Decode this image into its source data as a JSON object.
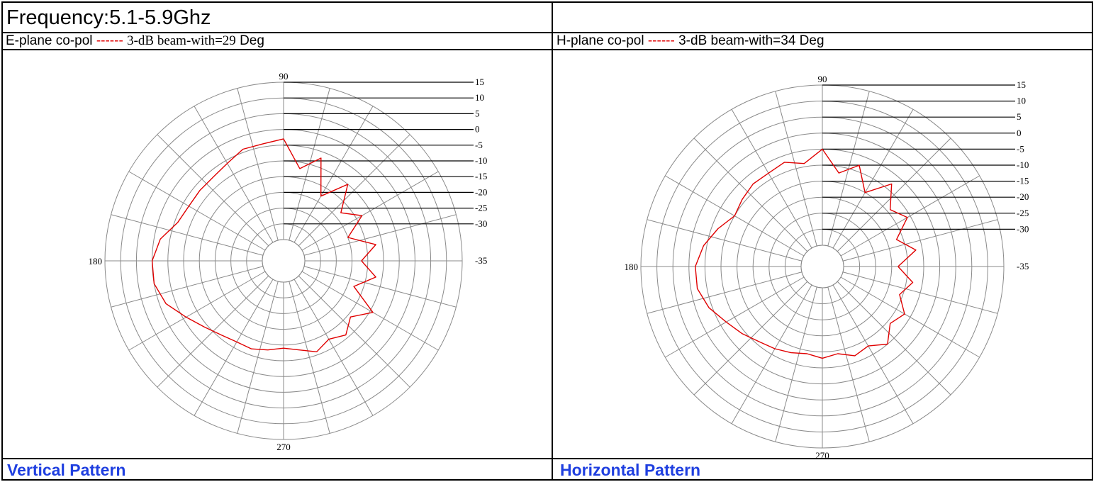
{
  "header": {
    "frequency": "Frequency:5.1-5.9Ghz"
  },
  "colors": {
    "trace": "#e00000",
    "grid": "#8a8a8a",
    "caption": "#1f3fe0"
  },
  "left": {
    "subtitle_prefix": "E-plane co-pol",
    "dash": "------",
    "beam_text": "3-dB beam-with=29",
    "unit": "Deg",
    "caption": "Vertical Pattern"
  },
  "right": {
    "subtitle_prefix": "H-plane co-pol",
    "dash": "------",
    "beam_text": "3-dB beam-with=34 Deg",
    "caption": "Horizontal Pattern"
  },
  "chart_data": [
    {
      "type": "polar",
      "angle_labels": [
        "90",
        "180",
        "270"
      ],
      "radial_ticks": [
        15,
        10,
        5,
        0,
        -5,
        -10,
        -15,
        -20,
        -25,
        -30,
        -35
      ],
      "rlim": [
        -35,
        15
      ],
      "angular_grid_step_deg": 15,
      "series": [
        {
          "angles": [
            0,
            10,
            20,
            30,
            40,
            50,
            60,
            70,
            80,
            90,
            100,
            110,
            120,
            130,
            140,
            150,
            160,
            170,
            180,
            190,
            200,
            210,
            220,
            230,
            240,
            250,
            260,
            270,
            280,
            290,
            300,
            310,
            320,
            330,
            340,
            350
          ],
          "values_db": [
            -17,
            -12,
            -20,
            -13,
            -18,
            -10,
            -18,
            -7,
            -12,
            -3,
            -4,
            -4,
            -6,
            -7,
            -7,
            -7,
            -6,
            -2,
            0,
            0,
            -2,
            -6,
            -9,
            -11,
            -12,
            -12,
            -13,
            -14,
            -13,
            -11,
            -13,
            -11,
            -14,
            -9,
            -18,
            -12
          ]
        }
      ]
    },
    {
      "type": "polar",
      "angle_labels": [
        "90",
        "180",
        "270"
      ],
      "radial_ticks": [
        15,
        10,
        5,
        0,
        -5,
        -10,
        -15,
        -20,
        -25,
        -30,
        -35
      ],
      "rlim": [
        -35,
        15
      ],
      "angular_grid_step_deg": 15,
      "series": [
        {
          "angles": [
            0,
            10,
            20,
            30,
            40,
            50,
            60,
            70,
            80,
            90,
            100,
            110,
            120,
            130,
            140,
            150,
            160,
            170,
            180,
            190,
            200,
            210,
            220,
            230,
            240,
            250,
            260,
            270,
            280,
            290,
            300,
            310,
            320,
            330,
            340,
            350
          ],
          "values_db": [
            -18,
            -12,
            -17,
            -11,
            -14,
            -8,
            -15,
            -8,
            -12,
            -5,
            -9,
            -7,
            -8,
            -8,
            -9,
            -10,
            -7,
            -4,
            -2,
            -2,
            -4,
            -7,
            -9,
            -11,
            -12,
            -13,
            -14,
            -13,
            -14,
            -12,
            -13,
            -10,
            -14,
            -12,
            -16,
            -13
          ]
        }
      ]
    }
  ]
}
